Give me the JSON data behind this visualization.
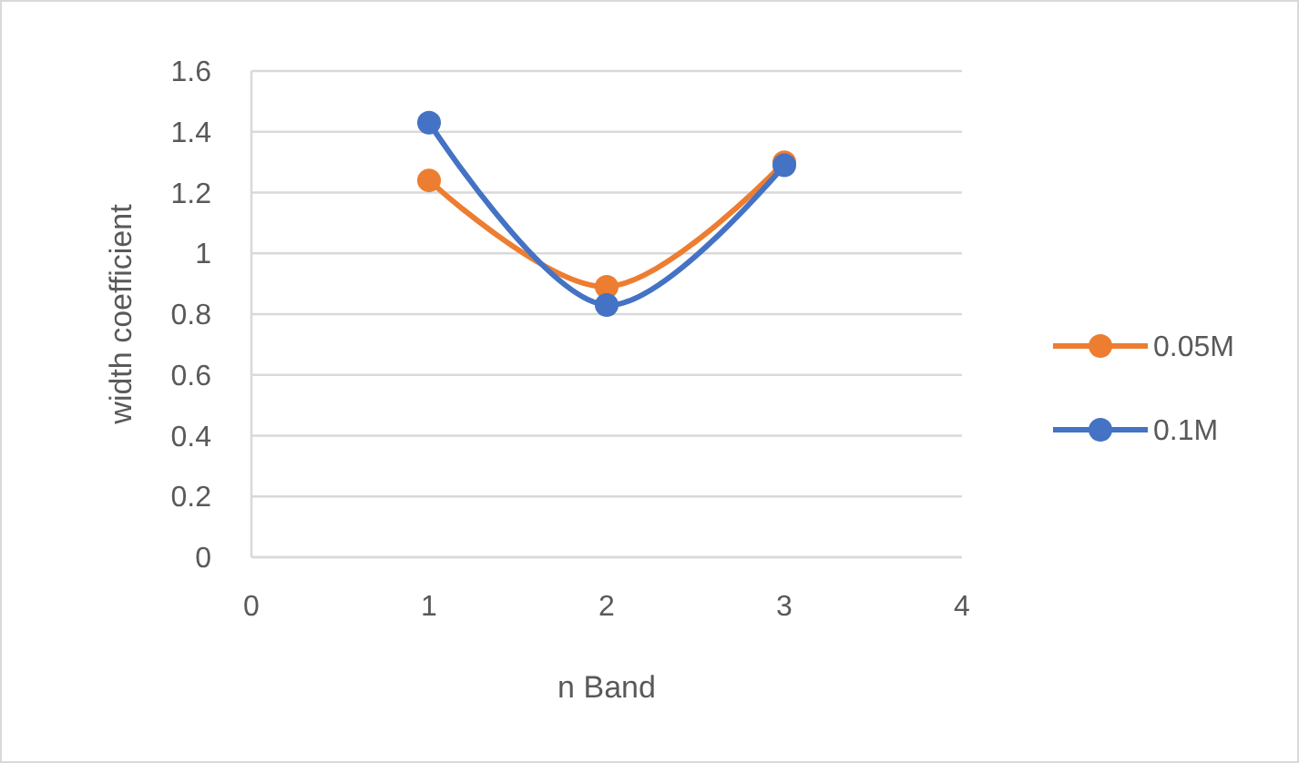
{
  "chart_data": {
    "type": "line",
    "xlabel": "n Band",
    "ylabel": "width coefficient",
    "x": [
      1,
      2,
      3
    ],
    "xlim": [
      0,
      4
    ],
    "xticks": [
      0,
      1,
      2,
      3,
      4
    ],
    "ylim": [
      0,
      1.6
    ],
    "yticks": [
      0,
      0.2,
      0.4,
      0.6,
      0.8,
      1,
      1.2,
      1.4,
      1.6
    ],
    "grid": "y",
    "legend": "right",
    "marker": "circle",
    "line_style": "solid",
    "series": [
      {
        "name": "0.05M",
        "color": "#ed7d31",
        "values": [
          1.24,
          0.89,
          1.3
        ]
      },
      {
        "name": "0.1M",
        "color": "#4472c4",
        "values": [
          1.43,
          0.83,
          1.29
        ]
      }
    ]
  }
}
